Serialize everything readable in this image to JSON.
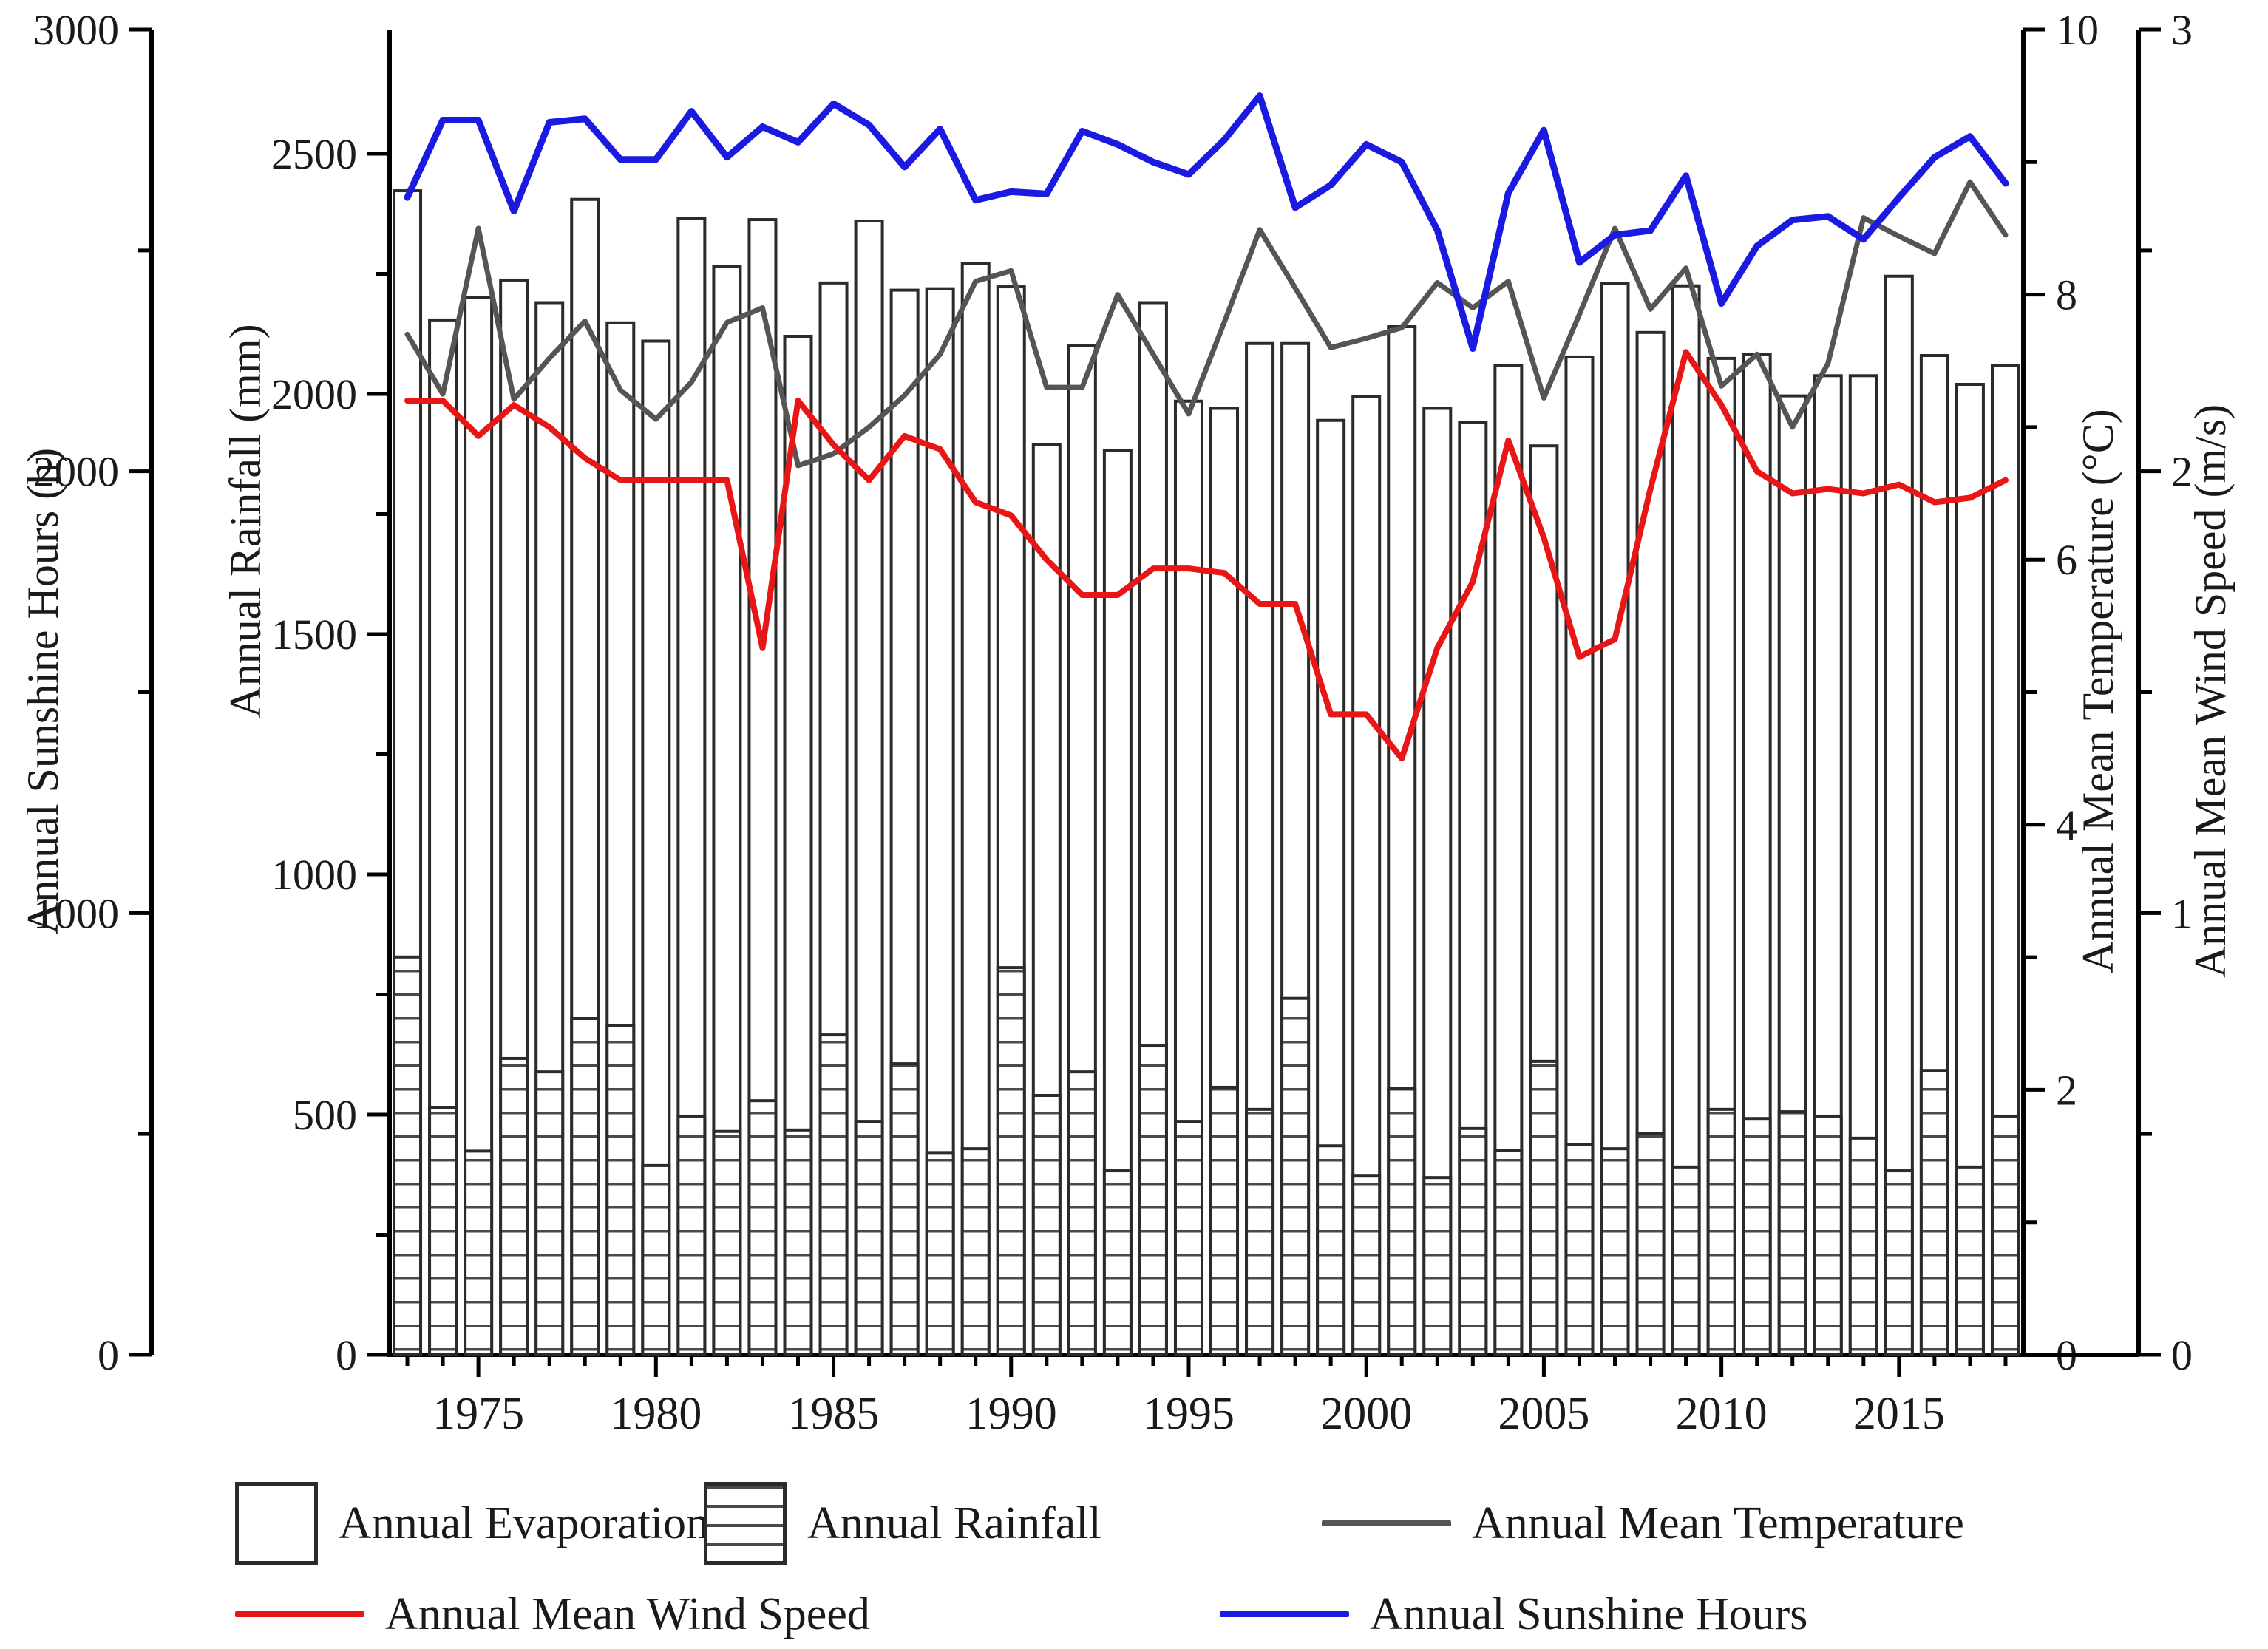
{
  "figure": {
    "type": "multi-axis climate chart",
    "background": "#ffffff"
  },
  "axes": {
    "sunshine": {
      "title": "Annual Sunshine Hours (h)",
      "min": 0,
      "max": 3000,
      "major_ticks": [
        0,
        1000,
        2000,
        3000
      ],
      "minor_step": 500,
      "side": "outer-left"
    },
    "rainfall": {
      "title": "Annual Rainfall (mm)",
      "min": 0,
      "max": 2723,
      "major_ticks": [
        0,
        500,
        1000,
        1500,
        2000,
        2500
      ],
      "minor_step": 250,
      "side": "inner-left"
    },
    "temperature": {
      "title": "Annual Mean Temperature (°C)",
      "min": 0,
      "max": 10,
      "major_ticks": [
        0,
        2,
        4,
        6,
        8,
        10
      ],
      "minor_step": 1,
      "side": "inner-right"
    },
    "wind": {
      "title": "Annual Mean Wind Speed (m/s)",
      "min": 0,
      "max": 3,
      "major_ticks": [
        0,
        1,
        2,
        3
      ],
      "minor_step": 0.5,
      "side": "outer-right"
    },
    "x": {
      "major_ticks": [
        1975,
        1980,
        1985,
        1990,
        1995,
        2000,
        2005,
        2010,
        2015
      ],
      "minor_step": 1,
      "first_year": 1973,
      "last_year": 2018
    }
  },
  "legend": {
    "evaporation": "Annual Evaporation",
    "rainfall": "Annual Rainfall",
    "temperature": "Annual Mean Temperature",
    "wind": "Annual Mean Wind Speed",
    "sunshine": "Annual Sunshine Hours"
  },
  "colors": {
    "bar_stroke": "#2b2b2b",
    "hatch": "#4a4a4a",
    "temperature_line": "#555555",
    "wind_line": "#e81616",
    "sunshine_line": "#1a1ae0"
  },
  "chart_data": {
    "type": "bar",
    "title": "",
    "xlabel": "",
    "ylabel_left_outer": "Annual Sunshine Hours (h)",
    "ylabel_left_inner": "Annual Rainfall (mm)",
    "ylabel_right_inner": "Annual Mean Temperature (°C)",
    "ylabel_right_outer": "Annual Mean Wind Speed (m/s)",
    "legend_position": "bottom",
    "grid": false,
    "years": [
      1973,
      1974,
      1975,
      1976,
      1977,
      1978,
      1979,
      1980,
      1981,
      1982,
      1983,
      1984,
      1985,
      1986,
      1987,
      1988,
      1989,
      1990,
      1991,
      1992,
      1993,
      1994,
      1995,
      1996,
      1997,
      1998,
      1999,
      2000,
      2001,
      2002,
      2003,
      2004,
      2005,
      2006,
      2007,
      2008,
      2009,
      2010,
      2011,
      2012,
      2013,
      2014,
      2015,
      2016,
      2017,
      2018
    ],
    "series": [
      {
        "name": "Annual Evaporation",
        "kind": "bar-plain",
        "unit": "mm",
        "axis_range": [
          0,
          2723
        ],
        "values": [
          2423,
          2154,
          2200,
          2237,
          2190,
          2405,
          2148,
          2110,
          2366,
          2266,
          2363,
          2120,
          2231,
          2360,
          2216,
          2219,
          2272,
          2223,
          1894,
          2100,
          1883,
          2190,
          1985,
          1970,
          2105,
          2105,
          1945,
          1995,
          2140,
          1970,
          1940,
          2060,
          1892,
          2077,
          2230,
          2128,
          2225,
          2074,
          2082,
          1996,
          2038,
          2038,
          2245,
          2080,
          2020,
          2060
        ]
      },
      {
        "name": "Annual Rainfall",
        "kind": "bar-hatched",
        "unit": "mm",
        "axis_range": [
          0,
          2723
        ],
        "values": [
          828,
          514,
          424,
          617,
          589,
          700,
          685,
          394,
          497,
          465,
          529,
          468,
          666,
          486,
          606,
          421,
          429,
          806,
          540,
          589,
          383,
          643,
          486,
          557,
          511,
          742,
          435,
          372,
          554,
          369,
          471,
          425,
          611,
          437,
          429,
          460,
          391,
          511,
          492,
          506,
          497,
          451,
          383,
          592,
          391,
          497
        ]
      },
      {
        "name": "Annual Mean Temperature",
        "kind": "line",
        "unit": "°C",
        "axis_range": [
          0,
          10
        ],
        "values": [
          7.7,
          7.25,
          8.5,
          7.21,
          7.52,
          7.8,
          7.28,
          7.06,
          7.34,
          7.79,
          7.9,
          6.71,
          6.8,
          7.0,
          7.24,
          7.55,
          8.1,
          8.18,
          7.3,
          7.3,
          8.0,
          7.55,
          7.1,
          7.79,
          8.49,
          8.05,
          7.6,
          7.67,
          7.75,
          8.09,
          7.9,
          8.1,
          7.22,
          7.85,
          8.5,
          7.89,
          8.2,
          7.31,
          7.55,
          7.0,
          7.48,
          8.58,
          8.44,
          8.31,
          8.85,
          8.45
        ]
      },
      {
        "name": "Annual Mean Wind Speed",
        "kind": "line",
        "unit": "m/s",
        "axis_range": [
          0,
          3
        ],
        "values": [
          2.16,
          2.16,
          2.08,
          2.15,
          2.1,
          2.03,
          1.98,
          1.98,
          1.98,
          1.98,
          1.6,
          2.16,
          2.06,
          1.98,
          2.08,
          2.05,
          1.93,
          1.9,
          1.8,
          1.72,
          1.72,
          1.78,
          1.78,
          1.77,
          1.7,
          1.7,
          1.45,
          1.45,
          1.35,
          1.6,
          1.75,
          2.07,
          1.85,
          1.58,
          1.62,
          1.96,
          2.27,
          2.15,
          2.0,
          1.95,
          1.96,
          1.95,
          1.97,
          1.93,
          1.94,
          1.98
        ]
      },
      {
        "name": "Annual Sunshine Hours",
        "kind": "line",
        "unit": "h",
        "axis_range": [
          0,
          3000
        ],
        "values": [
          2620,
          2795,
          2795,
          2589,
          2790,
          2798,
          2706,
          2706,
          2815,
          2711,
          2780,
          2745,
          2832,
          2784,
          2689,
          2775,
          2614,
          2633,
          2628,
          2770,
          2740,
          2700,
          2672,
          2750,
          2850,
          2597,
          2648,
          2740,
          2700,
          2546,
          2278,
          2630,
          2772,
          2473,
          2535,
          2545,
          2669,
          2380,
          2510,
          2569,
          2577,
          2525,
          2620,
          2711,
          2758,
          2652
        ]
      }
    ]
  }
}
